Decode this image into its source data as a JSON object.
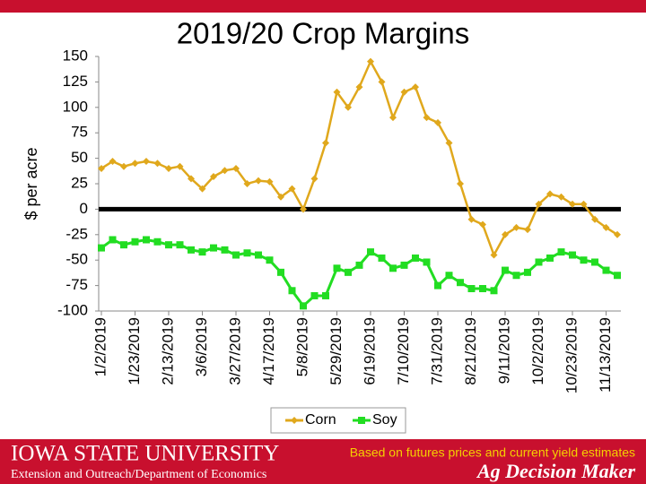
{
  "chart_data": {
    "type": "line",
    "title": "2019/20 Crop Margins",
    "y_label": "$ per acre",
    "categories": [
      "1/2/2019",
      null,
      null,
      "1/23/2019",
      null,
      null,
      "2/13/2019",
      null,
      null,
      "3/6/2019",
      null,
      null,
      "3/27/2019",
      null,
      null,
      "4/17/2019",
      null,
      null,
      "5/8/2019",
      null,
      null,
      "5/29/2019",
      null,
      null,
      "6/19/2019",
      null,
      null,
      "7/10/2019",
      null,
      null,
      "7/31/2019",
      null,
      null,
      "8/21/2019",
      null,
      null,
      "9/11/2019",
      null,
      null,
      "10/2/2019",
      null,
      null,
      "10/23/2019",
      null,
      null,
      "11/13/2019",
      null
    ],
    "series": [
      {
        "name": "Corn",
        "color": "#e0a81c",
        "marker": "diamond",
        "values": [
          40,
          47,
          42,
          45,
          47,
          45,
          40,
          42,
          30,
          20,
          32,
          38,
          40,
          25,
          28,
          27,
          12,
          20,
          0,
          30,
          65,
          115,
          100,
          120,
          145,
          125,
          90,
          115,
          120,
          90,
          85,
          65,
          25,
          -10,
          -15,
          -45,
          -25,
          -18,
          -20,
          5,
          15,
          12,
          5,
          5,
          -10,
          -18,
          -25
        ]
      },
      {
        "name": "Soy",
        "color": "#22dd22",
        "marker": "square",
        "values": [
          -38,
          -30,
          -35,
          -32,
          -30,
          -32,
          -35,
          -35,
          -40,
          -42,
          -38,
          -40,
          -45,
          -43,
          -45,
          -50,
          -62,
          -80,
          -95,
          -85,
          -85,
          -58,
          -62,
          -55,
          -42,
          -48,
          -58,
          -55,
          -48,
          -52,
          -75,
          -65,
          -72,
          -78,
          -78,
          -80,
          -60,
          -65,
          -62,
          -52,
          -48,
          -42,
          -45,
          -50,
          -52,
          -60,
          -65
        ]
      }
    ],
    "ylim": [
      -100,
      150
    ],
    "yticks": [
      -100,
      -75,
      -50,
      -25,
      0,
      25,
      50,
      75,
      100,
      125,
      150
    ],
    "zero_line": true,
    "grid": false,
    "legend": "bottom"
  },
  "footer": {
    "university": "IOWA STATE UNIVERSITY",
    "department": "Extension and Outreach/Department of Economics",
    "note": "Based on futures prices and current yield estimates",
    "brand": "Ag Decision Maker"
  }
}
